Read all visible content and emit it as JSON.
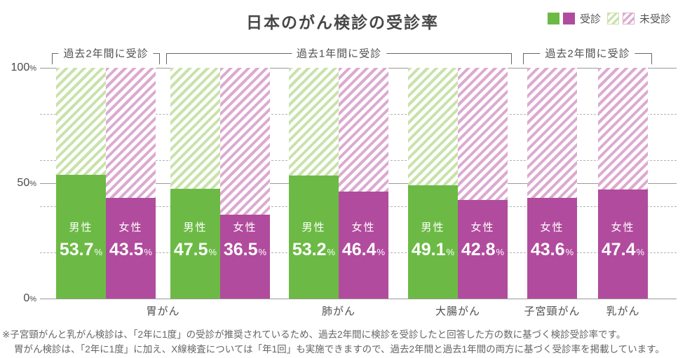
{
  "title": "日本のがん検診の受診率",
  "legend": {
    "received_label": "受診",
    "not_received_label": "未受診"
  },
  "colors": {
    "male_fill": "#6cba45",
    "female_fill": "#b14b9d",
    "male_hatch": "#c9e2ab",
    "female_hatch": "#dcaad0",
    "grid_solid": "#9a9a9a",
    "grid_dashed": "#b3b3b3",
    "text": "#4f4f4f"
  },
  "chart_data": {
    "type": "bar",
    "title": "日本のがん検診の受診率",
    "unit": "%",
    "ylim": [
      0,
      100
    ],
    "y_axis": {
      "solid_lines": [
        0,
        50,
        100
      ],
      "dashed_lines": [
        20,
        40,
        60,
        80
      ],
      "labeled_ticks": [
        0,
        50,
        100
      ],
      "unit": "%"
    },
    "groups": [
      {
        "bars": [
          {
            "label": "男性",
            "value": 53.7,
            "series": "male"
          },
          {
            "label": "女性",
            "value": 43.5,
            "series": "female"
          }
        ]
      },
      {
        "bars": [
          {
            "label": "男性",
            "value": 47.5,
            "series": "male"
          },
          {
            "label": "女性",
            "value": 36.5,
            "series": "female"
          }
        ]
      },
      {
        "bars": [
          {
            "label": "男性",
            "value": 53.2,
            "series": "male"
          },
          {
            "label": "女性",
            "value": 46.4,
            "series": "female"
          }
        ]
      },
      {
        "bars": [
          {
            "label": "男性",
            "value": 49.1,
            "series": "male"
          },
          {
            "label": "女性",
            "value": 42.8,
            "series": "female"
          }
        ]
      },
      {
        "bars": [
          {
            "label": "女性",
            "value": 43.6,
            "series": "female"
          }
        ]
      },
      {
        "bars": [
          {
            "label": "女性",
            "value": 47.4,
            "series": "female"
          }
        ]
      }
    ],
    "category_labels": [
      {
        "text": "胃がん",
        "span_groups": [
          0,
          1
        ]
      },
      {
        "text": "肺がん",
        "span_groups": [
          2
        ]
      },
      {
        "text": "大腸がん",
        "span_groups": [
          3
        ]
      },
      {
        "text": "子宮頸がん",
        "span_groups": [
          4
        ]
      },
      {
        "text": "乳がん",
        "span_groups": [
          5
        ]
      }
    ],
    "period_brackets": [
      {
        "text": "過去2年間に受診",
        "span_groups": [
          0
        ]
      },
      {
        "text": "過去1年間に受診",
        "span_groups": [
          1,
          2,
          3
        ]
      },
      {
        "text": "過去2年間に受診",
        "span_groups": [
          4,
          5
        ]
      }
    ]
  },
  "footnote": {
    "line1": "※子宮頸がんと乳がん検診は、「2年に1度」の受診が推奨されているため、過去2年間に検診を受診したと回答した方の数に基づく検診受診率です。",
    "line2": "胃がん検診は、「2年に1度」に加え、X線検査については「年1回」も実施できますので、過去2年間と過去1年間の両方に基づく受診率を掲載しています。"
  }
}
